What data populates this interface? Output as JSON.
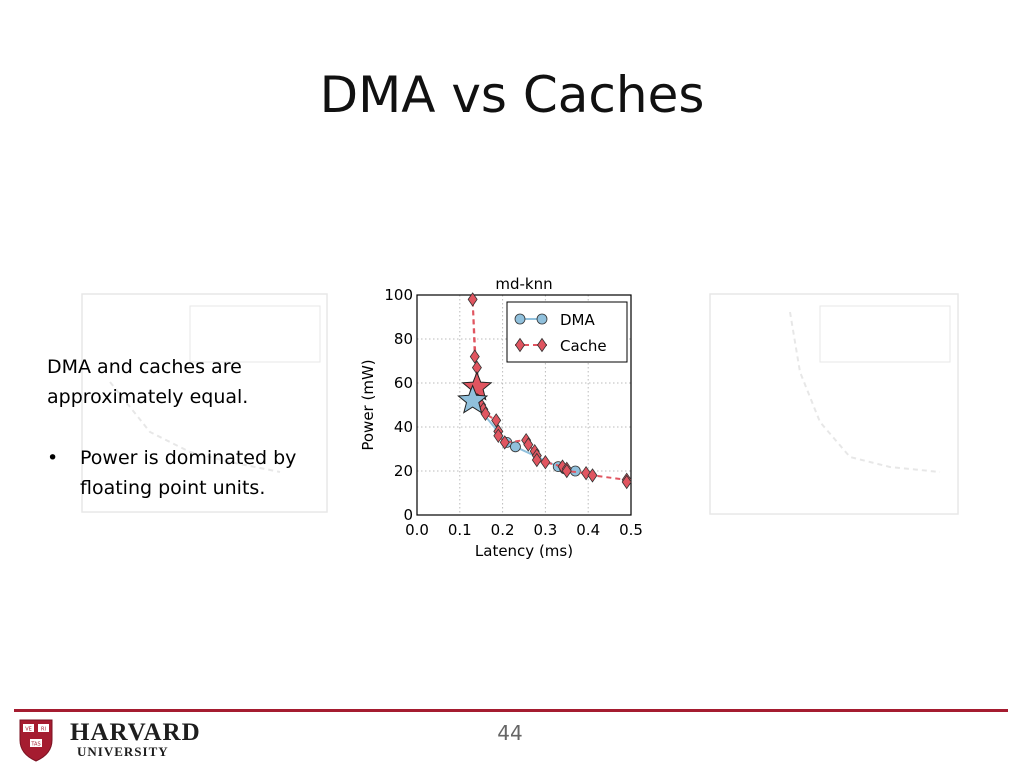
{
  "slide": {
    "title": "DMA vs Caches",
    "intro": "DMA and caches are approximately equal.",
    "bullets": [
      "Power is dominated by floating point units."
    ],
    "page_number": "44",
    "logo": {
      "name": "HARVARD",
      "sub": "UNIVERSITY",
      "shield_letters": [
        "VE",
        "RI",
        "TAS"
      ]
    }
  },
  "colors": {
    "accent": "#a51c30",
    "dma": "#90c0dc",
    "cache": "#e05560"
  },
  "chart_data": {
    "type": "scatter",
    "title": "md-knn",
    "xlabel": "Latency (ms)",
    "ylabel": "Power (mW)",
    "xlim": [
      0,
      0.5
    ],
    "ylim": [
      0,
      100
    ],
    "xticks": [
      "0.0",
      "0.1",
      "0.2",
      "0.3",
      "0.4",
      "0.5"
    ],
    "yticks": [
      "0",
      "20",
      "40",
      "60",
      "80",
      "100"
    ],
    "grid": true,
    "legend_position": "top-right",
    "series": [
      {
        "name": "DMA",
        "marker": "circle",
        "color": "#90c0dc",
        "line": "solid",
        "points": [
          [
            0.21,
            33
          ],
          [
            0.23,
            31
          ],
          [
            0.33,
            22
          ],
          [
            0.345,
            21
          ],
          [
            0.37,
            20
          ]
        ],
        "star": [
          0.13,
          52
        ]
      },
      {
        "name": "Cache",
        "marker": "diamond",
        "color": "#e05560",
        "line": "dashed",
        "points": [
          [
            0.13,
            98
          ],
          [
            0.135,
            72
          ],
          [
            0.14,
            67
          ],
          [
            0.145,
            55
          ],
          [
            0.15,
            50
          ],
          [
            0.155,
            48
          ],
          [
            0.16,
            46
          ],
          [
            0.185,
            43
          ],
          [
            0.19,
            38
          ],
          [
            0.19,
            36
          ],
          [
            0.205,
            33
          ],
          [
            0.255,
            34
          ],
          [
            0.26,
            32
          ],
          [
            0.275,
            29
          ],
          [
            0.28,
            27
          ],
          [
            0.28,
            25
          ],
          [
            0.3,
            24
          ],
          [
            0.34,
            22
          ],
          [
            0.35,
            21
          ],
          [
            0.35,
            20
          ],
          [
            0.395,
            19
          ],
          [
            0.41,
            18
          ],
          [
            0.49,
            16
          ],
          [
            0.49,
            15
          ]
        ],
        "star": [
          0.14,
          58
        ]
      }
    ]
  }
}
